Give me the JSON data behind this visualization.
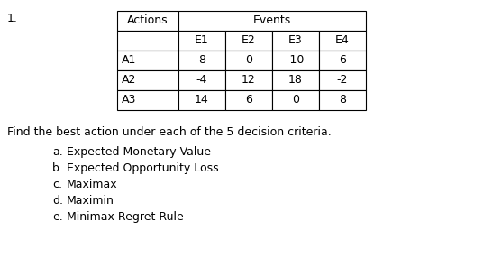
{
  "number_label": "1.",
  "table": {
    "actions_header": "Actions",
    "events_header": "Events",
    "col_headers": [
      "E1",
      "E2",
      "E3",
      "E4"
    ],
    "row_headers": [
      "A1",
      "A2",
      "A3"
    ],
    "values": [
      [
        8,
        0,
        -10,
        6
      ],
      [
        -4,
        12,
        18,
        -2
      ],
      [
        14,
        6,
        0,
        8
      ]
    ]
  },
  "instruction": "Find the best action under each of the 5 decision criteria.",
  "criteria": [
    [
      "a.",
      "Expected Monetary Value"
    ],
    [
      "b.",
      "Expected Opportunity Loss"
    ],
    [
      "c.",
      "Maximax"
    ],
    [
      "d.",
      "Maximin"
    ],
    [
      "e.",
      "Minimax Regret Rule"
    ]
  ],
  "bg_color": "#ffffff",
  "text_color": "#000000",
  "font_size": 9,
  "table_font_size": 9
}
